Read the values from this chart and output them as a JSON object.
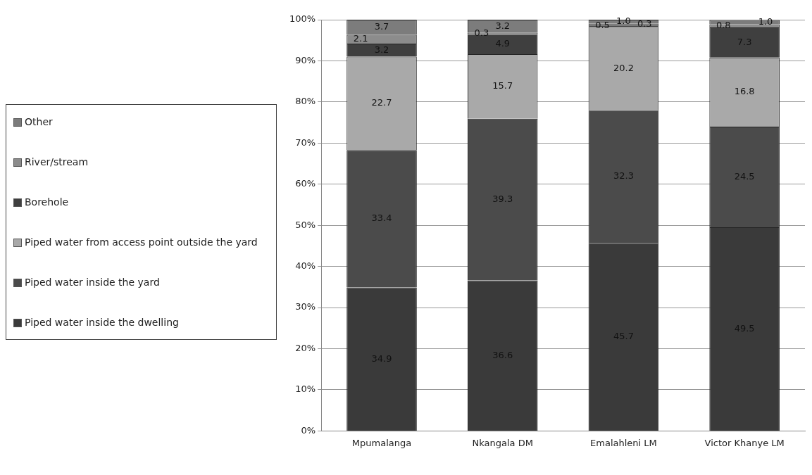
{
  "chart_data": {
    "type": "bar",
    "stacked": true,
    "categories": [
      "Mpumalanga",
      "Nkangala DM",
      "Emalahleni LM",
      "Victor Khanye LM"
    ],
    "series": [
      {
        "name": "Piped water inside the dwelling",
        "color": "#3a3a3a",
        "values": [
          34.9,
          36.6,
          45.7,
          49.5
        ],
        "value_labels": [
          "34.9",
          "36.6",
          "45.7",
          "49.5"
        ]
      },
      {
        "name": "Piped water inside the yard",
        "color": "#4b4b4b",
        "values": [
          33.4,
          39.3,
          32.3,
          24.5
        ],
        "value_labels": [
          "33.4",
          "39.3",
          "32.3",
          "24.5"
        ]
      },
      {
        "name": "Piped water from access point outside the yard",
        "color": "#a9a9a9",
        "values": [
          22.7,
          15.7,
          20.2,
          16.8
        ],
        "value_labels": [
          "22.7",
          "15.7",
          "20.2",
          "16.8"
        ]
      },
      {
        "name": "Borehole",
        "color": "#3f3f3f",
        "values": [
          3.2,
          4.9,
          0.5,
          7.3
        ],
        "value_labels": [
          "3.2",
          "4.9",
          "0.5",
          "7.3"
        ]
      },
      {
        "name": "River/stream",
        "color": "#8c8c8c",
        "values": [
          2.1,
          0.3,
          0.3,
          0.8
        ],
        "value_labels": [
          "2.1",
          "0.3",
          "0.3",
          "0.8"
        ]
      },
      {
        "name": "Other",
        "color": "#7c7c7c",
        "values": [
          3.7,
          3.2,
          1.0,
          1.0
        ],
        "value_labels": [
          "3.7",
          "3.2",
          "1.0",
          "1.0"
        ]
      }
    ],
    "ylim": [
      0,
      100
    ],
    "yticks": [
      {
        "value": 0,
        "label": "0%"
      },
      {
        "value": 10,
        "label": "10%"
      },
      {
        "value": 20,
        "label": "20%"
      },
      {
        "value": 30,
        "label": "30%"
      },
      {
        "value": 40,
        "label": "40%"
      },
      {
        "value": 50,
        "label": "50%"
      },
      {
        "value": 60,
        "label": "60%"
      },
      {
        "value": 70,
        "label": "70%"
      },
      {
        "value": 80,
        "label": "80%"
      },
      {
        "value": 90,
        "label": "90%"
      },
      {
        "value": 100,
        "label": "100%"
      }
    ],
    "grid": "y",
    "legend": "left"
  }
}
